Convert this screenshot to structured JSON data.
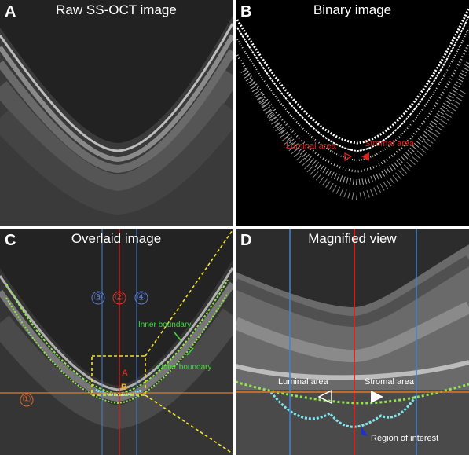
{
  "panels": {
    "a": {
      "letter": "A",
      "title": "Raw SS-OCT image"
    },
    "b": {
      "letter": "B",
      "title": "Binary image",
      "luminal_label": "Luminal area",
      "stromal_label": "Stromal area"
    },
    "c": {
      "letter": "C",
      "title": "Overlaid image",
      "marker_1": "①",
      "marker_2": "②",
      "marker_3": "③",
      "marker_4": "④",
      "inner_boundary": "Inner boundary",
      "outer_boundary": "Outer boundary",
      "point_a": "A",
      "point_b": "B"
    },
    "d": {
      "letter": "D",
      "title": "Magnified view",
      "luminal_label": "Luminal area",
      "stromal_label": "Stromal area",
      "roi_label": "Region of interest"
    }
  },
  "colors": {
    "red_line": "#e0201c",
    "blue_line": "#3d82d8",
    "orange_line": "#e8781e",
    "green_boundary": "#8ee84a",
    "cyan_boundary": "#7fe8f0",
    "yellow_box": "#f2e22c",
    "marker_blue": "#5a7ad0",
    "marker_red": "#e03028",
    "marker_orange": "#d8682a",
    "annotation_green": "#38e038",
    "arrow_blue": "#2030d0"
  }
}
